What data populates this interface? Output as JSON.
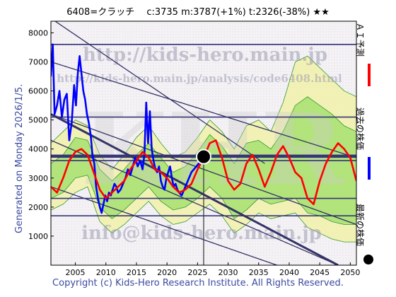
{
  "header": {
    "title": "6408=クラッチ　 c:3735  m:3787(+1%)  t:2326(-38%)  ★★"
  },
  "footer": {
    "copyright": "Copyright (c) Kids-Hero Research Institute. All Rights Reserved."
  },
  "side": {
    "generated": "Generated on Monday 2026/1/5."
  },
  "watermarks": {
    "url1": "http://kids-hero.main.jp",
    "url2": "http://kids-hero.main.jp/analysis/code6408.html",
    "email": "info@kids-hero.main.jp",
    "logo": "KHR"
  },
  "legend": {
    "ai": {
      "label": "ＡＩ予測",
      "color": "#ff0000"
    },
    "past": {
      "label": "過去の株価",
      "color": "#0000ff"
    },
    "latest": {
      "label": "最新の株価",
      "color": "#000000"
    }
  },
  "colors": {
    "band_fill_outer": "#f2f2a0",
    "band_fill_inner": "#7bd84a",
    "band_line": "#339933",
    "channel_line": "#333366",
    "hline": "#333377",
    "frame": "#000000"
  },
  "chart_data": {
    "type": "line",
    "xlim": [
      2001,
      2051
    ],
    "ylim": [
      0,
      8400
    ],
    "x_ticks": [
      2005,
      2010,
      2015,
      2020,
      2025,
      2030,
      2035,
      2040,
      2045,
      2050
    ],
    "y_ticks": [
      1000,
      2000,
      3000,
      4000,
      5000,
      6000,
      7000,
      8000
    ],
    "latest_point": {
      "x": 2026.0,
      "y": 3735
    },
    "horizontal_lines": [
      1700,
      2300,
      3600,
      3787,
      5100,
      7600
    ],
    "horizontal_lines_thick": [
      3735
    ],
    "channel_lines": [
      {
        "x": [
          2001,
          2051
        ],
        "y": [
          7000,
          3700
        ]
      },
      {
        "x": [
          2001,
          2051
        ],
        "y": [
          5200,
          1400
        ]
      },
      {
        "x": [
          2001,
          2048
        ],
        "y": [
          4300,
          0
        ]
      },
      {
        "x": [
          2001,
          2038
        ],
        "y": [
          2700,
          0
        ]
      },
      {
        "x": [
          2001,
          2036
        ],
        "y": [
          8500,
          3500
        ]
      }
    ],
    "thick_channel": {
      "x": [
        2001,
        2048
      ],
      "y": [
        5200,
        0
      ]
    },
    "series": [
      {
        "name": "過去の株価",
        "color": "#0000ff",
        "x": [
          2001.0,
          2001.3,
          2001.6,
          2002.0,
          2002.4,
          2002.8,
          2003.2,
          2003.6,
          2004.0,
          2004.4,
          2004.8,
          2005.1,
          2005.4,
          2005.7,
          2006.0,
          2006.3,
          2006.6,
          2006.9,
          2007.2,
          2007.5,
          2007.8,
          2008.1,
          2008.4,
          2008.7,
          2009.0,
          2009.3,
          2009.6,
          2009.9,
          2010.2,
          2010.5,
          2010.8,
          2011.1,
          2011.4,
          2011.7,
          2012.0,
          2012.4,
          2012.8,
          2013.2,
          2013.6,
          2014.0,
          2014.4,
          2014.8,
          2015.2,
          2015.6,
          2016.0,
          2016.3,
          2016.6,
          2016.9,
          2017.2,
          2017.5,
          2017.8,
          2018.1,
          2018.4,
          2018.7,
          2019.0,
          2019.3,
          2019.6,
          2019.9,
          2020.2,
          2020.5,
          2020.8,
          2021.1,
          2021.4,
          2021.7,
          2022.0,
          2022.4,
          2022.8,
          2023.2,
          2023.6,
          2024.0,
          2024.4,
          2024.8,
          2025.2,
          2025.6,
          2026.0
        ],
        "y": [
          6500,
          7600,
          5200,
          5500,
          6000,
          5100,
          5700,
          5900,
          4300,
          4900,
          6200,
          5500,
          6600,
          7200,
          6600,
          6000,
          5700,
          5200,
          4900,
          4500,
          3800,
          3500,
          2700,
          2300,
          2000,
          1800,
          2100,
          2400,
          2200,
          2500,
          2400,
          2600,
          2800,
          2700,
          2500,
          2600,
          2800,
          3000,
          3300,
          3100,
          3400,
          3700,
          3400,
          3600,
          3300,
          3800,
          5600,
          4200,
          5300,
          4000,
          3600,
          3300,
          3200,
          3400,
          2900,
          2700,
          2600,
          3000,
          3200,
          3400,
          3000,
          2700,
          2800,
          2600,
          2500,
          2400,
          2600,
          2800,
          3000,
          3200,
          3300,
          3400,
          3500,
          3600,
          3735
        ]
      },
      {
        "name": "ＡＩ予測",
        "color": "#ff0000",
        "x": [
          2001.0,
          2002.0,
          2003.0,
          2004.0,
          2005.0,
          2006.0,
          2007.0,
          2008.0,
          2009.0,
          2010.0,
          2011.0,
          2012.0,
          2013.0,
          2014.0,
          2015.0,
          2016.0,
          2017.0,
          2018.0,
          2019.0,
          2020.0,
          2021.0,
          2022.0,
          2023.0,
          2024.0,
          2025.0,
          2026.0,
          2027.0,
          2028.0,
          2029.0,
          2030.0,
          2031.0,
          2032.0,
          2033.0,
          2034.0,
          2035.0,
          2036.0,
          2037.0,
          2038.0,
          2039.0,
          2040.0,
          2041.0,
          2042.0,
          2043.0,
          2044.0,
          2045.0,
          2046.0,
          2047.0,
          2048.0,
          2049.0,
          2050.0,
          2051.0
        ],
        "y": [
          2700,
          2500,
          3000,
          3600,
          3900,
          4000,
          3800,
          3200,
          2600,
          2300,
          2500,
          2700,
          2900,
          3300,
          3600,
          3900,
          3700,
          3300,
          3200,
          3000,
          2700,
          2500,
          2600,
          2800,
          3300,
          3700,
          4200,
          4300,
          3700,
          2900,
          2600,
          2800,
          3500,
          3800,
          3300,
          2700,
          3200,
          3800,
          4100,
          3700,
          3200,
          3000,
          2300,
          2100,
          2900,
          3500,
          3900,
          4200,
          4000,
          3700,
          2900
        ]
      }
    ],
    "bands": {
      "x": [
        2001,
        2003,
        2005,
        2007,
        2009,
        2011,
        2013,
        2015,
        2017,
        2019,
        2021,
        2023,
        2025,
        2027,
        2029,
        2031,
        2033,
        2035,
        2037,
        2039,
        2041,
        2043,
        2045,
        2047,
        2049,
        2051
      ],
      "outer_upper": [
        4200,
        4600,
        5000,
        4800,
        3800,
        3300,
        3800,
        4400,
        4800,
        4200,
        3700,
        3900,
        4400,
        5000,
        4600,
        4000,
        4800,
        5000,
        4600,
        5600,
        7000,
        7200,
        6800,
        6400,
        6000,
        5800
      ],
      "outer_lower": [
        1900,
        2100,
        2500,
        2700,
        1500,
        1100,
        1400,
        1800,
        2200,
        1700,
        1400,
        1500,
        1800,
        2100,
        1700,
        1100,
        1400,
        1800,
        1600,
        1700,
        1800,
        1300,
        1100,
        900,
        800,
        800
      ],
      "inner_upper": [
        3500,
        3800,
        4400,
        4300,
        3300,
        2900,
        3300,
        3800,
        4200,
        3700,
        3200,
        3400,
        3900,
        4500,
        4100,
        3500,
        4200,
        4300,
        4000,
        4600,
        5500,
        5800,
        5500,
        5200,
        4800,
        4600
      ],
      "inner_lower": [
        2300,
        2500,
        3000,
        3100,
        2000,
        1600,
        1900,
        2300,
        2700,
        2200,
        1900,
        2000,
        2300,
        2700,
        2300,
        1600,
        1900,
        2300,
        2100,
        2200,
        2300,
        1800,
        1700,
        1500,
        1400,
        1400
      ]
    }
  }
}
